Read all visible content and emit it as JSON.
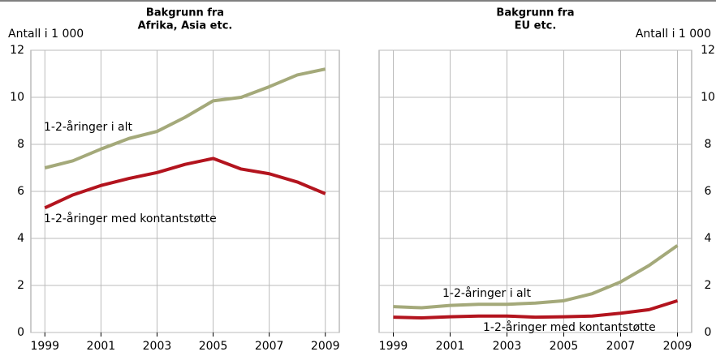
{
  "chart_data": [
    {
      "type": "line",
      "title": [
        "Bakgrunn fra",
        "Afrika, Asia etc."
      ],
      "y_label": "Antall i 1 000",
      "y_axis_side": "left",
      "x": [
        1999,
        2000,
        2001,
        2002,
        2003,
        2004,
        2005,
        2006,
        2007,
        2008,
        2009
      ],
      "xlim": [
        1998.5,
        2009.5
      ],
      "xticks": [
        1999,
        2001,
        2003,
        2005,
        2007,
        2009
      ],
      "ylim": [
        0,
        12
      ],
      "yticks": [
        0,
        2,
        4,
        6,
        8,
        10,
        12
      ],
      "grid": true,
      "series": [
        {
          "name": "1-2-åringer i alt",
          "color": "#a4a97a",
          "values": [
            7.0,
            7.3,
            7.8,
            8.25,
            8.55,
            9.15,
            9.85,
            10.0,
            10.45,
            10.95,
            11.2
          ]
        },
        {
          "name": "1-2-åringer med kontantstøtte",
          "color": "#b3141e",
          "values": [
            5.3,
            5.85,
            6.25,
            6.55,
            6.8,
            7.15,
            7.4,
            6.95,
            6.75,
            6.4,
            5.9
          ]
        }
      ]
    },
    {
      "type": "line",
      "title": [
        "Bakgrunn fra",
        "EU etc."
      ],
      "y_label": "Antall i 1 000",
      "y_axis_side": "right",
      "x": [
        1999,
        2000,
        2001,
        2002,
        2003,
        2004,
        2005,
        2006,
        2007,
        2008,
        2009
      ],
      "xlim": [
        1998.5,
        2009.5
      ],
      "xticks": [
        1999,
        2001,
        2003,
        2005,
        2007,
        2009
      ],
      "ylim": [
        0,
        12
      ],
      "yticks": [
        0,
        2,
        4,
        6,
        8,
        10,
        12
      ],
      "grid": true,
      "series": [
        {
          "name": "1-2-åringer i alt",
          "color": "#a4a97a",
          "values": [
            1.1,
            1.05,
            1.15,
            1.2,
            1.2,
            1.25,
            1.35,
            1.65,
            2.15,
            2.85,
            3.7
          ]
        },
        {
          "name": "1-2-åringer med kontantstøtte",
          "color": "#b3141e",
          "values": [
            0.65,
            0.62,
            0.67,
            0.7,
            0.7,
            0.65,
            0.67,
            0.7,
            0.82,
            0.97,
            1.35
          ]
        }
      ]
    }
  ]
}
